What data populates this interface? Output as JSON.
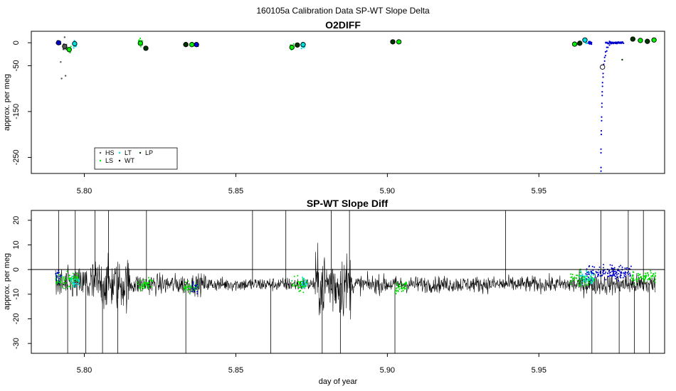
{
  "figure": {
    "title": "160105a   Calibration Data SP-WT Slope Delta"
  },
  "chart_data": [
    {
      "type": "scatter",
      "title": "O2DIFF",
      "xlabel": "",
      "ylabel": "approx. per meg",
      "xlim": [
        5.7825,
        5.9915
      ],
      "ylim": [
        -285,
        25
      ],
      "x_ticks": [
        5.8,
        5.85,
        5.9,
        5.95
      ],
      "x_tick_labels": [
        "5.80",
        "5.85",
        "5.90",
        "5.95"
      ],
      "y_ticks": [
        0,
        -50,
        -150,
        -250
      ],
      "y_tick_labels": [
        "0",
        "-50",
        "-150",
        "-250"
      ],
      "legend": {
        "placement": "bottom-left",
        "entries": [
          {
            "label": "HS",
            "color": "#555555"
          },
          {
            "label": "LS",
            "color": "#00ee00"
          },
          {
            "label": "LT",
            "color": "#00dddd"
          },
          {
            "label": "WT",
            "color": "#000000"
          },
          {
            "label": "LP",
            "color": "#003300"
          }
        ]
      },
      "clusters": [
        {
          "x": 5.7915,
          "y": 0,
          "color": "#0000cc",
          "spread": 6,
          "w": 0.0018,
          "n": 30
        },
        {
          "x": 5.7935,
          "y": -9,
          "color": "#555555",
          "spread": 12,
          "w": 0.0012,
          "n": 20
        },
        {
          "x": 5.795,
          "y": -15,
          "color": "#00ee00",
          "spread": 10,
          "w": 0.0012,
          "n": 20
        },
        {
          "x": 5.7968,
          "y": -3,
          "color": "#00dddd",
          "spread": 12,
          "w": 0.0012,
          "n": 25
        },
        {
          "x": 5.8185,
          "y": 0,
          "color": "#00ee00",
          "spread": 14,
          "w": 0.0012,
          "n": 25
        },
        {
          "x": 5.8203,
          "y": -12,
          "color": "#003300",
          "spread": 6,
          "w": 0.0012,
          "n": 15
        },
        {
          "x": 5.8335,
          "y": -4,
          "color": "#003300",
          "spread": 3,
          "w": 0.0012,
          "n": 15
        },
        {
          "x": 5.8355,
          "y": -4,
          "color": "#00ee00",
          "spread": 4,
          "w": 0.0012,
          "n": 15
        },
        {
          "x": 5.837,
          "y": -5,
          "color": "#0000cc",
          "spread": 4,
          "w": 0.0012,
          "n": 15
        },
        {
          "x": 5.8685,
          "y": -10,
          "color": "#00ee00",
          "spread": 12,
          "w": 0.0012,
          "n": 20
        },
        {
          "x": 5.8703,
          "y": -4,
          "color": "#003300",
          "spread": 5,
          "w": 0.0012,
          "n": 15
        },
        {
          "x": 5.8722,
          "y": -6,
          "color": "#00dddd",
          "spread": 10,
          "w": 0.0012,
          "n": 20
        },
        {
          "x": 5.9018,
          "y": 2,
          "color": "#003300",
          "spread": 3,
          "w": 0.0012,
          "n": 15
        },
        {
          "x": 5.9038,
          "y": 2,
          "color": "#00ee00",
          "spread": 3,
          "w": 0.0012,
          "n": 15
        },
        {
          "x": 5.9618,
          "y": -3,
          "color": "#00ee00",
          "spread": 7,
          "w": 0.0012,
          "n": 20
        },
        {
          "x": 5.9635,
          "y": -1,
          "color": "#003300",
          "spread": 4,
          "w": 0.0012,
          "n": 15
        },
        {
          "x": 5.9652,
          "y": 4,
          "color": "#00dddd",
          "spread": 7,
          "w": 0.0012,
          "n": 20
        },
        {
          "x": 5.9668,
          "y": 0,
          "color": "#0000cc",
          "spread": 7,
          "w": 0.0012,
          "n": 20
        },
        {
          "x": 5.975,
          "y": 0,
          "color": "#0000cc",
          "spread": 3,
          "w": 0.006,
          "n": 60
        },
        {
          "x": 5.981,
          "y": 8,
          "color": "#003300",
          "spread": 3,
          "w": 0.0012,
          "n": 15
        },
        {
          "x": 5.9835,
          "y": 5,
          "color": "#00ee00",
          "spread": 3,
          "w": 0.0012,
          "n": 15
        },
        {
          "x": 5.9858,
          "y": 3,
          "color": "#003300",
          "spread": 3,
          "w": 0.0012,
          "n": 15
        },
        {
          "x": 5.988,
          "y": 6,
          "color": "#00ee00",
          "spread": 3,
          "w": 0.0012,
          "n": 15
        }
      ],
      "means": [
        {
          "x": 5.7915,
          "y": 0,
          "color": "#0000cc"
        },
        {
          "x": 5.7935,
          "y": -8,
          "color": "#555555"
        },
        {
          "x": 5.795,
          "y": -15,
          "color": "#00ee00"
        },
        {
          "x": 5.7968,
          "y": -2,
          "color": "#00dddd"
        },
        {
          "x": 5.8185,
          "y": -1,
          "color": "#00ee00"
        },
        {
          "x": 5.8203,
          "y": -12,
          "color": "#003300"
        },
        {
          "x": 5.8335,
          "y": -4,
          "color": "#003300"
        },
        {
          "x": 5.8355,
          "y": -4,
          "color": "#00ee00"
        },
        {
          "x": 5.837,
          "y": -4,
          "color": "#0000cc"
        },
        {
          "x": 5.8685,
          "y": -10,
          "color": "#00ee00"
        },
        {
          "x": 5.8703,
          "y": -5,
          "color": "#003300"
        },
        {
          "x": 5.8722,
          "y": -4,
          "color": "#00dddd"
        },
        {
          "x": 5.9018,
          "y": 2,
          "color": "#003300"
        },
        {
          "x": 5.9038,
          "y": 2,
          "color": "#00ee00"
        },
        {
          "x": 5.9618,
          "y": -3,
          "color": "#00ee00"
        },
        {
          "x": 5.9635,
          "y": -1,
          "color": "#003300"
        },
        {
          "x": 5.9652,
          "y": 6,
          "color": "#00dddd"
        },
        {
          "x": 5.971,
          "y": -53,
          "color": "#ffffff"
        },
        {
          "x": 5.981,
          "y": 8,
          "color": "#003300"
        },
        {
          "x": 5.9835,
          "y": 5,
          "color": "#00ee00"
        },
        {
          "x": 5.9858,
          "y": 3,
          "color": "#003300"
        },
        {
          "x": 5.988,
          "y": 6,
          "color": "#00ee00"
        }
      ],
      "dip": {
        "color": "#0000cc",
        "x": [
          5.9705,
          5.9705,
          5.9706,
          5.9707,
          5.9708,
          5.9709,
          5.971,
          5.9712,
          5.9714,
          5.9717,
          5.972,
          5.9724,
          5.9728,
          5.9733,
          5.9738
        ],
        "y": [
          -280,
          -240,
          -200,
          -170,
          -140,
          -115,
          -95,
          -75,
          -55,
          -40,
          -28,
          -18,
          -10,
          -5,
          -2
        ]
      },
      "outliers": [
        {
          "x": 5.7925,
          "y": -78,
          "color": "#555555"
        },
        {
          "x": 5.7938,
          "y": -72,
          "color": "#555555"
        },
        {
          "x": 5.7922,
          "y": -42,
          "color": "#555555"
        },
        {
          "x": 5.7935,
          "y": 12,
          "color": "#555555"
        },
        {
          "x": 5.9775,
          "y": -37,
          "color": "#003300"
        },
        {
          "x": 5.8335,
          "y": 0,
          "color": "#003300"
        }
      ]
    },
    {
      "type": "line",
      "title": "SP-WT Slope Diff",
      "xlabel": "day of year",
      "ylabel": "approx. per meg",
      "xlim": [
        5.7825,
        5.9915
      ],
      "ylim": [
        -34,
        24
      ],
      "x_ticks": [
        5.8,
        5.85,
        5.9,
        5.95
      ],
      "x_tick_labels": [
        "5.80",
        "5.85",
        "5.90",
        "5.95"
      ],
      "y_ticks": [
        20,
        10,
        0,
        -10,
        -20,
        -30
      ],
      "y_tick_labels": [
        "20",
        "10",
        "0",
        "-10",
        "-20",
        "-30"
      ],
      "reference_line_y": 0,
      "line_color": "#000000",
      "series_x_range": [
        5.7905,
        5.9885
      ],
      "baseline": -6,
      "noise_regions": [
        {
          "x0": 5.7905,
          "x1": 5.8,
          "amp": 7
        },
        {
          "x0": 5.8,
          "x1": 5.815,
          "amp": 11
        },
        {
          "x0": 5.815,
          "x1": 5.84,
          "amp": 4.5
        },
        {
          "x0": 5.84,
          "x1": 5.876,
          "amp": 3
        },
        {
          "x0": 5.876,
          "x1": 5.888,
          "amp": 14
        },
        {
          "x0": 5.888,
          "x1": 5.9,
          "amp": 4
        },
        {
          "x0": 5.9,
          "x1": 5.96,
          "amp": 3.5
        },
        {
          "x0": 5.96,
          "x1": 5.9885,
          "amp": 4.5
        }
      ],
      "spikes_x": [
        5.7915,
        5.7945,
        5.797,
        5.8005,
        5.8035,
        5.806,
        5.808,
        5.811,
        5.8205,
        5.8335,
        5.8555,
        5.8615,
        5.8665,
        5.8785,
        5.8815,
        5.8845,
        5.8875,
        5.9025,
        5.939,
        5.9675,
        5.9705,
        5.9765,
        5.9795,
        5.9815,
        5.9845,
        5.9865
      ],
      "cal_points": [
        {
          "x": 5.7905,
          "x1": 5.7985,
          "y": -4,
          "color": "#00dd00",
          "spread": 5
        },
        {
          "x": 5.7905,
          "x1": 5.7925,
          "y": -3,
          "color": "#0000cc",
          "spread": 4
        },
        {
          "x": 5.7955,
          "x1": 5.7985,
          "y": -5,
          "color": "#00dddd",
          "spread": 5
        },
        {
          "x": 5.8175,
          "x1": 5.8225,
          "y": -6,
          "color": "#00dd00",
          "spread": 5
        },
        {
          "x": 5.8325,
          "x1": 5.8375,
          "y": -7,
          "color": "#00dd00",
          "spread": 4
        },
        {
          "x": 5.8355,
          "x1": 5.8375,
          "y": -7,
          "color": "#0000cc",
          "spread": 4
        },
        {
          "x": 5.8685,
          "x1": 5.8735,
          "y": -6,
          "color": "#00dd00",
          "spread": 5
        },
        {
          "x": 5.8715,
          "x1": 5.8735,
          "y": -6,
          "color": "#00dddd",
          "spread": 4
        },
        {
          "x": 5.9025,
          "x1": 5.9065,
          "y": -7,
          "color": "#00dd00",
          "spread": 4
        },
        {
          "x": 5.9605,
          "x1": 5.9685,
          "y": -4,
          "color": "#00dd00",
          "spread": 5
        },
        {
          "x": 5.9635,
          "x1": 5.9685,
          "y": -3,
          "color": "#00dddd",
          "spread": 5
        },
        {
          "x": 5.9655,
          "x1": 5.9805,
          "y": -1,
          "color": "#0000cc",
          "spread": 5
        },
        {
          "x": 5.9805,
          "x1": 5.9885,
          "y": -3,
          "color": "#00dd00",
          "spread": 4
        }
      ]
    }
  ]
}
